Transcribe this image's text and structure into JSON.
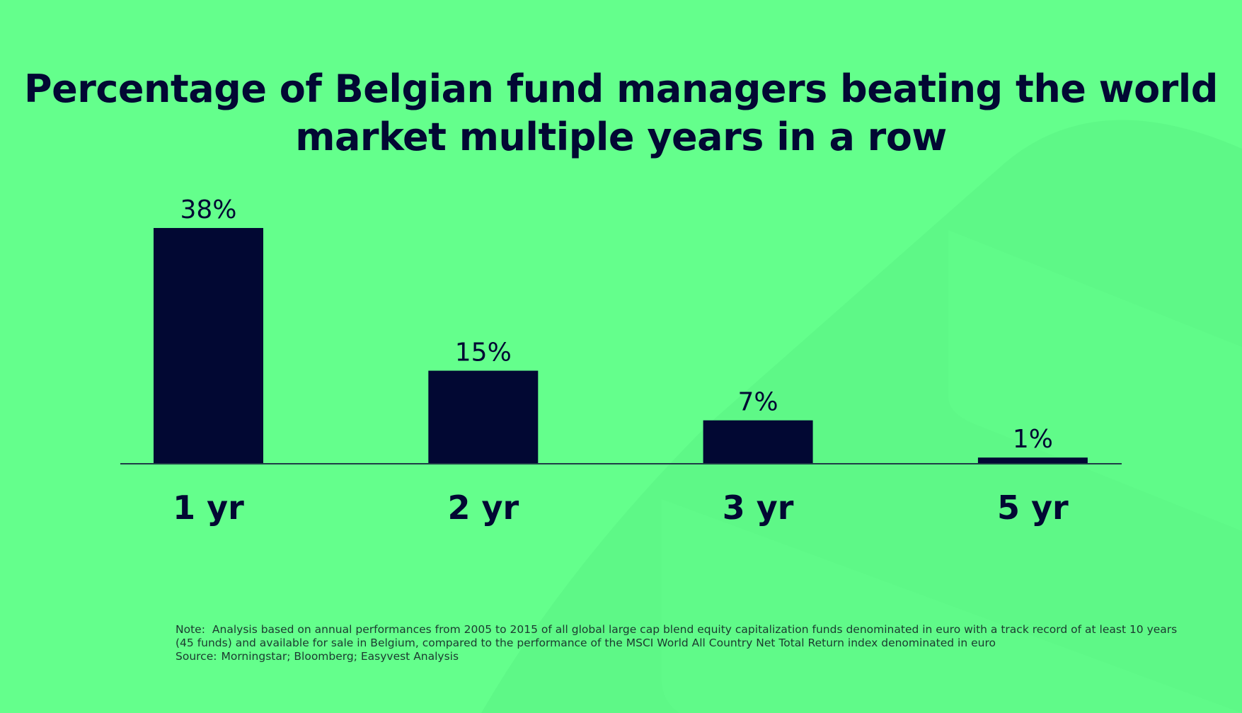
{
  "colors": {
    "background": "#64ff8c",
    "bar": "#020833",
    "text": "#020833",
    "footnote": "#1b3a2f",
    "shape": "#5cf586"
  },
  "chart_data": {
    "type": "bar",
    "title": "Percentage of Belgian fund managers beating the world market multiple years in a row",
    "categories": [
      "1 yr",
      "2 yr",
      "3 yr",
      "5 yr"
    ],
    "values": [
      38,
      15,
      7,
      1
    ],
    "value_labels": [
      "38%",
      "15%",
      "7%",
      "1%"
    ],
    "value_unit": "%",
    "xlabel": "",
    "ylabel": "",
    "ylim": [
      0,
      38
    ],
    "grid": false,
    "legend": "none",
    "y_axis_visible": false
  },
  "footnote": {
    "note_label": "Note:",
    "note_text": "Analysis based on annual performances from 2005 to 2015 of all global large cap blend equity capitalization funds denominated in euro with a track record of at least 10 years (45 funds)  and available for sale in Belgium, compared to the performance of the MSCI World All Country Net Total Return index denominated in euro",
    "source_label": "Source:",
    "source_text": "Morningstar; Bloomberg; Easyvest Analysis"
  }
}
